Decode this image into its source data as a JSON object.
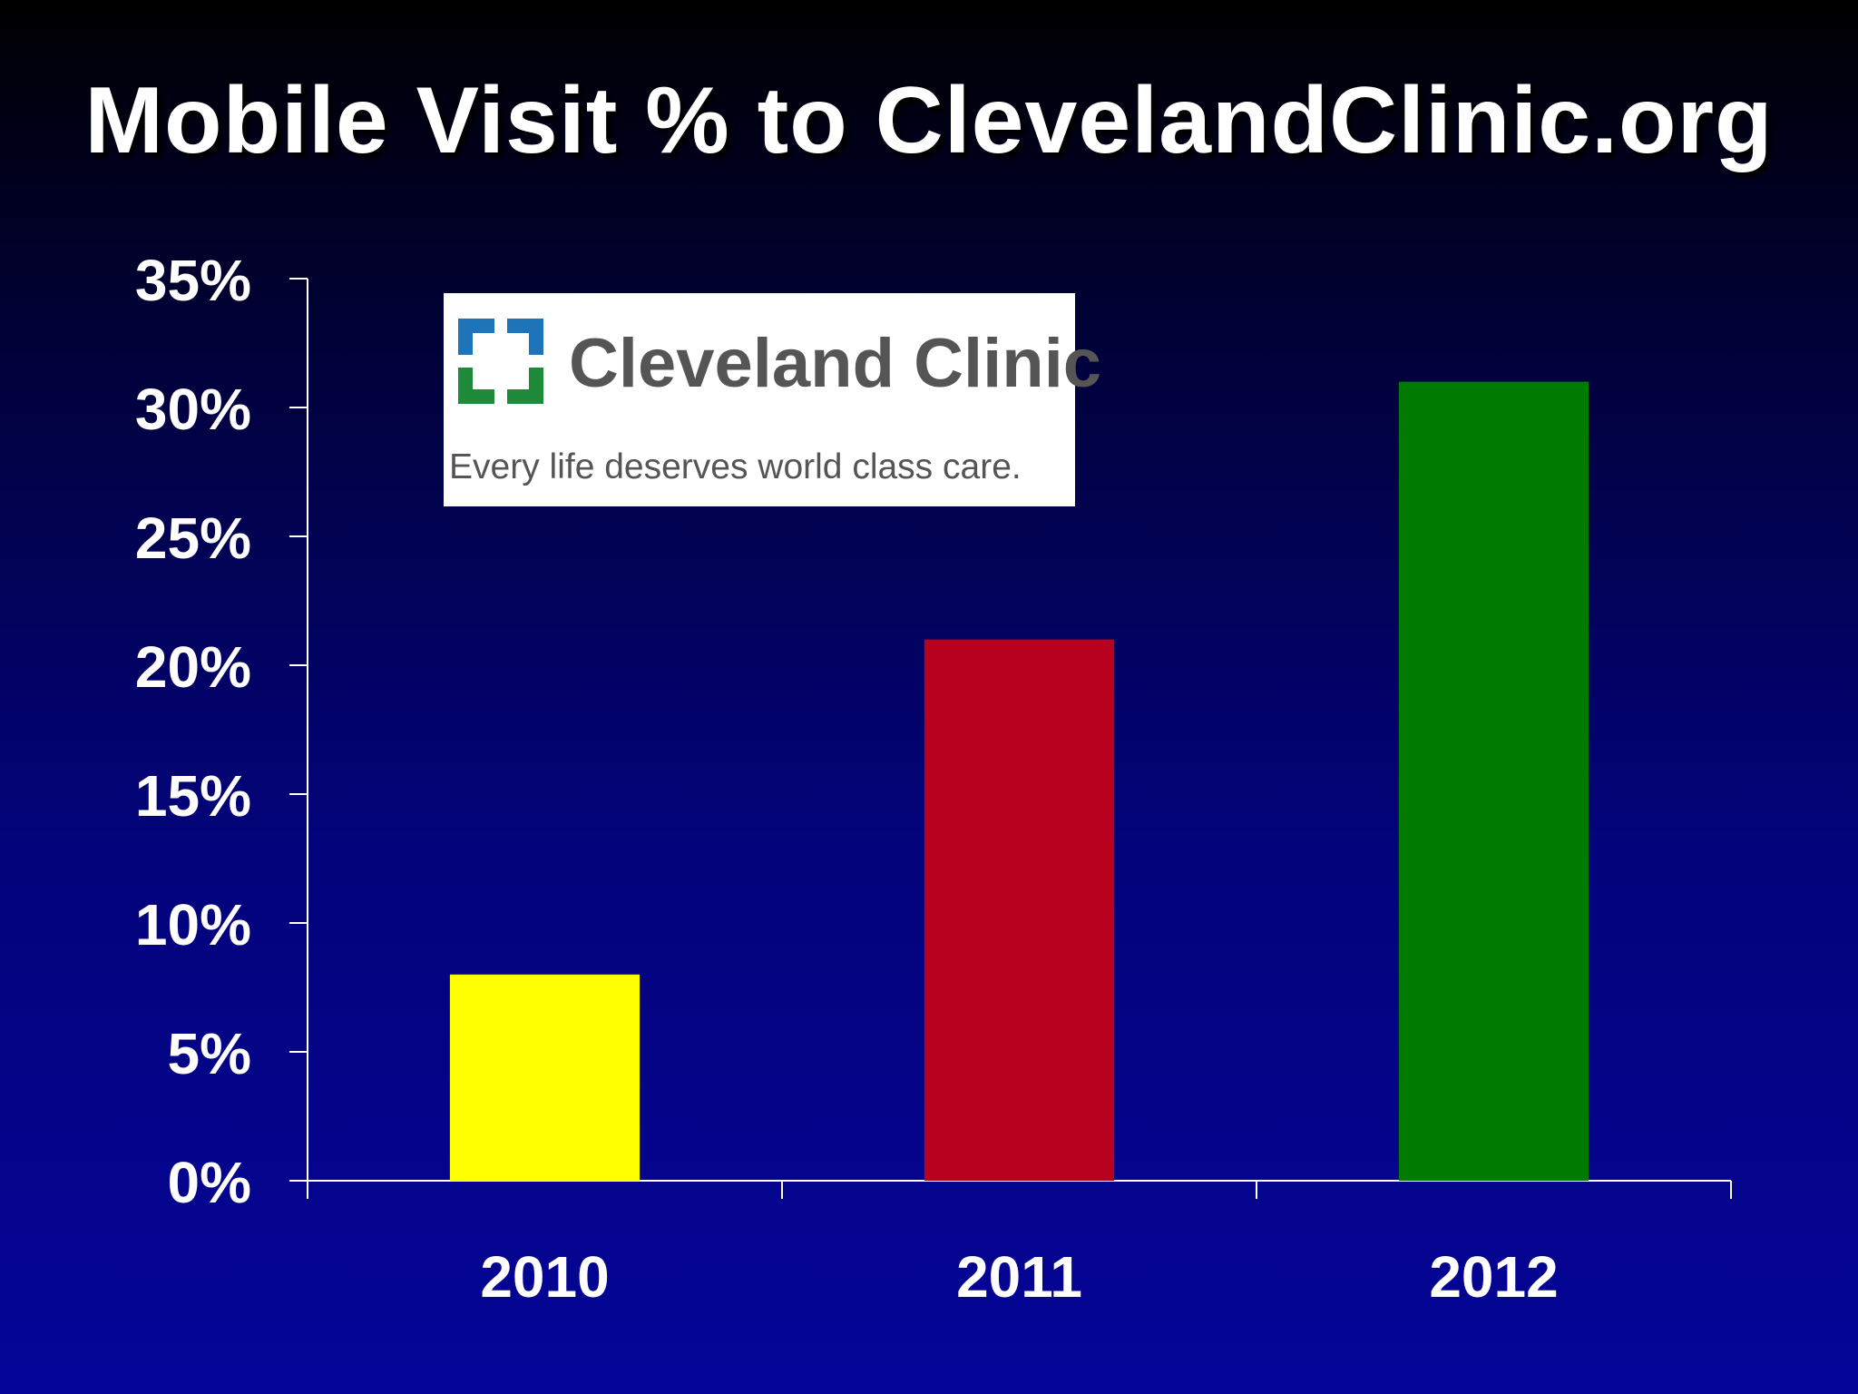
{
  "slide": {
    "title": "Mobile Visit % to ClevelandClinic.org"
  },
  "logo": {
    "name": "Cleveland Clinic",
    "tagline": "Every life deserves world class care.",
    "colors": {
      "blue": "#1e74b8",
      "green": "#1f8b3a"
    }
  },
  "chart_data": {
    "type": "bar",
    "title": "Mobile Visit % to ClevelandClinic.org",
    "xlabel": "",
    "ylabel": "",
    "categories": [
      "2010",
      "2011",
      "2012"
    ],
    "values": [
      8,
      21,
      31
    ],
    "colors": [
      "#ffff00",
      "#b8001f",
      "#007a00"
    ],
    "ylim": [
      0,
      35
    ],
    "yticks": [
      0,
      5,
      10,
      15,
      20,
      25,
      30,
      35
    ],
    "ytick_labels": [
      "0%",
      "5%",
      "10%",
      "15%",
      "20%",
      "25%",
      "30%",
      "35%"
    ],
    "grid": false,
    "legend": "none"
  }
}
